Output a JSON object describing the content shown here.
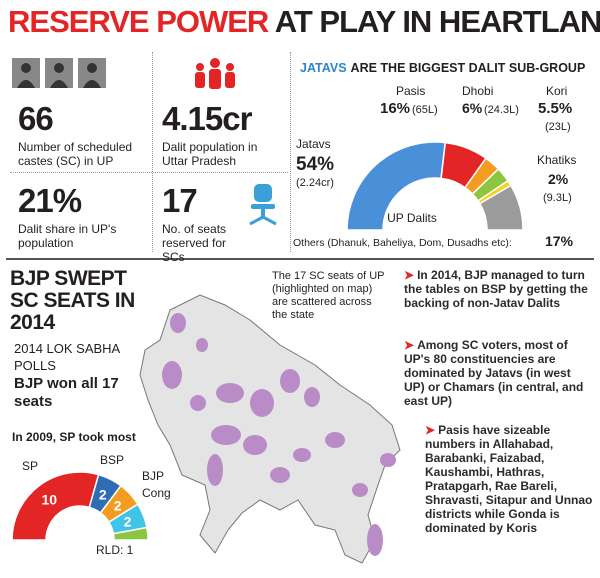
{
  "header": {
    "title_red": "RESERVE POWER",
    "title_black": "AT PLAY IN HEARTLAND"
  },
  "stats": [
    {
      "value": "66",
      "label": "Number of scheduled castes (SC) in UP"
    },
    {
      "value": "4.15cr",
      "label": "Dalit population in Uttar Pradesh"
    },
    {
      "value": "21%",
      "label": "Dalit share in UP's population"
    },
    {
      "value": "17",
      "label": "No. of seats reserved for SCs"
    }
  ],
  "lower": {
    "title": "BJP SWEPT SC SEATS IN 2014",
    "subtitle": "2014 LOK SABHA POLLS",
    "result": "BJP won all 17 seats",
    "map_note": "The 17 SC seats of UP (highlighted on map) are scattered across the state"
  },
  "bullets": [
    "In 2014, BJP managed to turn the tables on BSP by getting the backing of non-Jatav Dalits",
    "Among SC voters, most of UP's 80 constituencies are dominated by Jatavs (in west UP) or Chamars (in central, and east UP)",
    "Pasis have sizeable numbers in Allahabad, Barabanki, Faizabad, Kaushambi, Hathras, Pratapgarh, Rae Bareli, Shravasti, Sitapur and Unnao districts while Gonda is dominated by Koris"
  ],
  "chart_data": [
    {
      "type": "pie",
      "title_highlight": "JATAVS",
      "title": "ARE THE BIGGEST DALIT SUB-GROUP",
      "center_label": "UP Dalits",
      "categories": [
        "Jatavs",
        "Pasis",
        "Dhobi",
        "Kori",
        "Khatiks",
        "Others (Dhanuk, Baheliya, Dom, Dusadhs etc):"
      ],
      "values": [
        54,
        16,
        6,
        5.5,
        2,
        17
      ],
      "value_labels": [
        "54%",
        "16%",
        "6%",
        "5.5%",
        "2%",
        "17%"
      ],
      "population_labels": [
        "(2.24cr)",
        "(65L)",
        "(24.3L)",
        "(23L)",
        "(9.3L)",
        null
      ],
      "colors": [
        "#4a90d9",
        "#e42526",
        "#f39c1f",
        "#8cc63f",
        "#f4d21f",
        "#9b9b9b"
      ]
    },
    {
      "type": "pie",
      "title": "In 2009, SP took most",
      "categories": [
        "SP",
        "BSP",
        "BJP",
        "Cong",
        null
      ],
      "values": [
        10,
        2,
        2,
        2,
        1
      ],
      "value_labels": [
        "10",
        "2",
        "2",
        "2",
        "RLD: 1"
      ],
      "colors": [
        "#e42526",
        "#2e6db4",
        "#f39c1f",
        "#41c4e8",
        "#8cc63f"
      ]
    }
  ]
}
